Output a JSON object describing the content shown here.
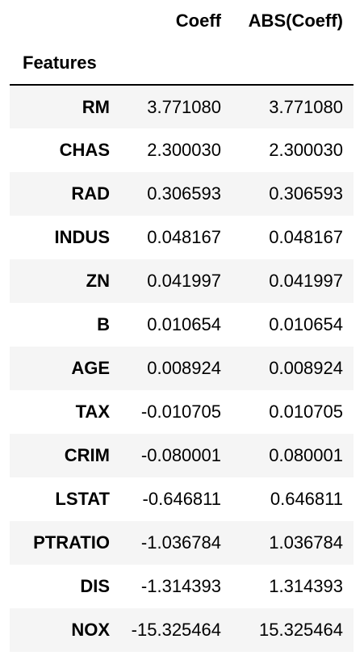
{
  "table": {
    "columns": [
      "Coeff",
      "ABS(Coeff)"
    ],
    "index_name": "Features",
    "rows": [
      {
        "feature": "RM",
        "coeff": "3.771080",
        "abs_coeff": "3.771080"
      },
      {
        "feature": "CHAS",
        "coeff": "2.300030",
        "abs_coeff": "2.300030"
      },
      {
        "feature": "RAD",
        "coeff": "0.306593",
        "abs_coeff": "0.306593"
      },
      {
        "feature": "INDUS",
        "coeff": "0.048167",
        "abs_coeff": "0.048167"
      },
      {
        "feature": "ZN",
        "coeff": "0.041997",
        "abs_coeff": "0.041997"
      },
      {
        "feature": "B",
        "coeff": "0.010654",
        "abs_coeff": "0.010654"
      },
      {
        "feature": "AGE",
        "coeff": "0.008924",
        "abs_coeff": "0.008924"
      },
      {
        "feature": "TAX",
        "coeff": "-0.010705",
        "abs_coeff": "0.010705"
      },
      {
        "feature": "CRIM",
        "coeff": "-0.080001",
        "abs_coeff": "0.080001"
      },
      {
        "feature": "LSTAT",
        "coeff": "-0.646811",
        "abs_coeff": "0.646811"
      },
      {
        "feature": "PTRATIO",
        "coeff": "-1.036784",
        "abs_coeff": "1.036784"
      },
      {
        "feature": "DIS",
        "coeff": "-1.314393",
        "abs_coeff": "1.314393"
      },
      {
        "feature": "NOX",
        "coeff": "-15.325464",
        "abs_coeff": "15.325464"
      }
    ]
  },
  "colors": {
    "stripe": "#f5f5f5",
    "text": "#000000",
    "rule": "#000000"
  }
}
